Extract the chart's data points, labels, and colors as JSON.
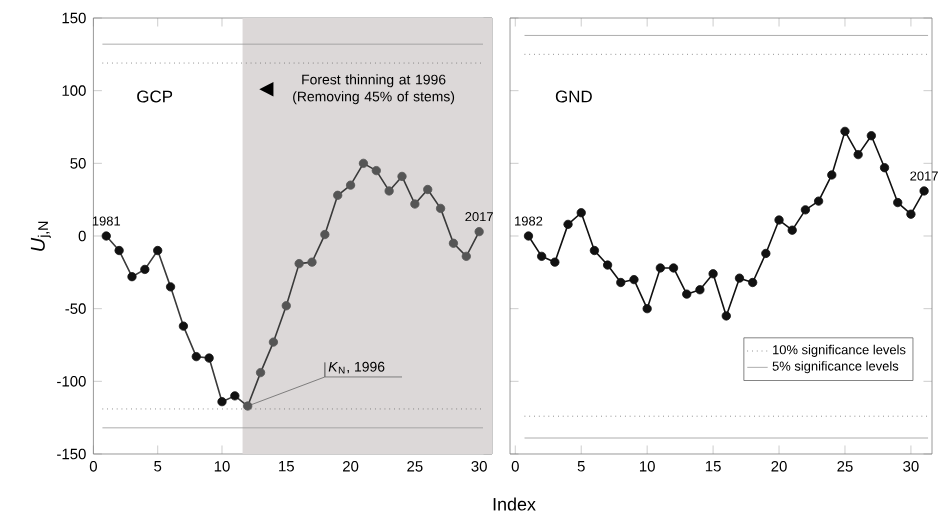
{
  "chart_data": [
    {
      "type": "line",
      "title": "GCP",
      "xlabel": "Index",
      "ylabel": "*U*$_{j,N}$",
      "x": [
        1,
        2,
        3,
        4,
        5,
        6,
        7,
        8,
        9,
        10,
        11,
        12,
        13,
        14,
        15,
        16,
        17,
        18,
        19,
        20,
        21,
        22,
        23,
        24,
        25,
        26,
        27,
        28,
        29,
        30
      ],
      "series": [
        {
          "color": "#3a3a3a",
          "colors": [
            "#111111",
            "#111111",
            "#111111",
            "#111111",
            "#111111",
            "#111111",
            "#111111",
            "#111111",
            "#111111",
            "#111111",
            "#111111",
            "#555555",
            "#555555",
            "#555555",
            "#555555",
            "#555555",
            "#555555",
            "#555555",
            "#555555",
            "#555555",
            "#555555",
            "#555555",
            "#555555",
            "#555555",
            "#555555",
            "#555555",
            "#555555",
            "#555555",
            "#555555",
            "#555555"
          ],
          "values": [
            0,
            -10,
            -28,
            -23,
            -10,
            -35,
            -62,
            -83,
            -84,
            -114,
            -110,
            -117,
            -94,
            -73,
            -48,
            -19,
            -18,
            1,
            28,
            35,
            50,
            45,
            31,
            41,
            22,
            32,
            19,
            -5,
            -14,
            3
          ]
        }
      ],
      "xlim": [
        0,
        31
      ],
      "ylim": [
        -150,
        150
      ],
      "xticks": [
        0,
        5,
        10,
        15,
        20,
        25,
        30
      ],
      "yticks": [
        -150,
        -100,
        -50,
        0,
        50,
        100,
        150
      ],
      "marker": "circle",
      "line_style": "solid",
      "grid": false,
      "bands": [
        {
          "axis": "x",
          "from": 11.6,
          "to": 31,
          "color": "#dcd8d8"
        }
      ],
      "ref_lines": [
        {
          "axis": "y",
          "value": 119,
          "color": "#555555",
          "line_style": "dotted"
        },
        {
          "axis": "y",
          "value": 132,
          "color": "#999999",
          "line_style": "solid"
        },
        {
          "axis": "y",
          "value": -119,
          "color": "#555555",
          "line_style": "dotted"
        },
        {
          "axis": "y",
          "value": -132,
          "color": "#999999",
          "line_style": "solid"
        }
      ],
      "annotations": [
        "Forest thinning at 1996 (Removing 45% of stems)",
        {
          "text": "*K*$_{N}$, 1996",
          "x": 12,
          "y": -117
        },
        {
          "text": "1981",
          "x": 1,
          "y": 0
        },
        {
          "text": "2017",
          "x": 30,
          "y": 3
        }
      ]
    },
    {
      "type": "line",
      "title": "GND",
      "x": [
        1,
        2,
        3,
        4,
        5,
        6,
        7,
        8,
        9,
        10,
        11,
        12,
        13,
        14,
        15,
        16,
        17,
        18,
        19,
        20,
        21,
        22,
        23,
        24,
        25,
        26,
        27,
        28,
        29,
        30,
        31
      ],
      "series": [
        {
          "color": "#111111",
          "values": [
            0,
            -14,
            -18,
            8,
            16,
            -10,
            -20,
            -32,
            -30,
            -50,
            -22,
            -22,
            -40,
            -37,
            -26,
            -55,
            -29,
            -32,
            -12,
            11,
            4,
            18,
            24,
            42,
            72,
            56,
            69,
            47,
            23,
            15,
            31
          ]
        }
      ],
      "xlim": [
        -0.4,
        31.6
      ],
      "ylim": [
        -150,
        150
      ],
      "xticks": [
        0,
        5,
        10,
        15,
        20,
        25,
        30
      ],
      "yticks": [
        -150,
        -100,
        -50,
        0,
        50,
        100,
        150
      ],
      "tick_labels": "x",
      "marker": "circle",
      "line_style": "solid",
      "grid": false,
      "legend": "bottom right",
      "ref_lines": [
        {
          "axis": "y",
          "value": 125,
          "color": "#555555",
          "line_style": "dotted",
          "label": "10% significance levels"
        },
        {
          "axis": "y",
          "value": 138,
          "color": "#999999",
          "line_style": "solid",
          "label": "5% significance levels"
        },
        {
          "axis": "y",
          "value": -124,
          "color": "#555555",
          "line_style": "dotted"
        },
        {
          "axis": "y",
          "value": -139,
          "color": "#999999",
          "line_style": "solid"
        }
      ],
      "annotations": [
        {
          "text": "1982",
          "x": 1,
          "y": 0
        },
        {
          "text": "2017",
          "x": 31,
          "y": 31
        }
      ]
    }
  ]
}
